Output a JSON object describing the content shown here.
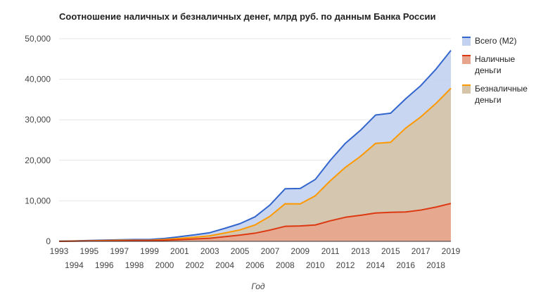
{
  "chart_data": {
    "type": "area",
    "title": "Соотношение наличных и безналичных денег, млрд руб. по данным Банка России",
    "xlabel": "Год",
    "ylabel": "",
    "x": [
      1993,
      1994,
      1995,
      1996,
      1997,
      1998,
      1999,
      2000,
      2001,
      2002,
      2003,
      2004,
      2005,
      2006,
      2007,
      2008,
      2009,
      2010,
      2011,
      2012,
      2013,
      2014,
      2015,
      2016,
      2017,
      2018,
      2019
    ],
    "ylim": [
      0,
      50000
    ],
    "yticks": [
      "0",
      "10,000",
      "20,000",
      "30,000",
      "40,000",
      "50,000"
    ],
    "xticks_top": [
      "1993",
      "1995",
      "1997",
      "1999",
      "2001",
      "2003",
      "2005",
      "2007",
      "2009",
      "2011",
      "2013",
      "2015",
      "2017",
      "2019"
    ],
    "xticks_bottom": [
      "1994",
      "1996",
      "1998",
      "2000",
      "2002",
      "2004",
      "2006",
      "2008",
      "2010",
      "2012",
      "2014",
      "2016",
      "2018"
    ],
    "grid": true,
    "legend_position": "right",
    "series": [
      {
        "name": "Всего (М2)",
        "color": "#3366cc",
        "fill": "#c3d1f0",
        "values": [
          33,
          98,
          220,
          295,
          384,
          453,
          448,
          714,
          1144,
          1612,
          2134,
          3213,
          4363,
          6045,
          8995,
          12976,
          13044,
          15268,
          20012,
          24204,
          27405,
          31156,
          31616,
          35180,
          38418,
          42442,
          47108
        ]
      },
      {
        "name": "Наличные деньги",
        "color": "#dc3912",
        "fill": "#e8a58d",
        "values": [
          10,
          36,
          80,
          103,
          130,
          188,
          187,
          266,
          419,
          584,
          763,
          1147,
          1535,
          2009,
          2785,
          3702,
          3795,
          4038,
          5063,
          5939,
          6430,
          6986,
          7171,
          7239,
          7714,
          8446,
          9339
        ]
      },
      {
        "name": "Безналичные деньги",
        "color": "#ff9900",
        "fill": "#d6c4a8",
        "values": [
          23,
          62,
          140,
          192,
          254,
          265,
          261,
          448,
          725,
          1028,
          1371,
          2066,
          2828,
          4036,
          6210,
          9274,
          9249,
          11230,
          14949,
          18265,
          20975,
          24170,
          24445,
          27941,
          30704,
          33996,
          37769
        ]
      }
    ]
  }
}
